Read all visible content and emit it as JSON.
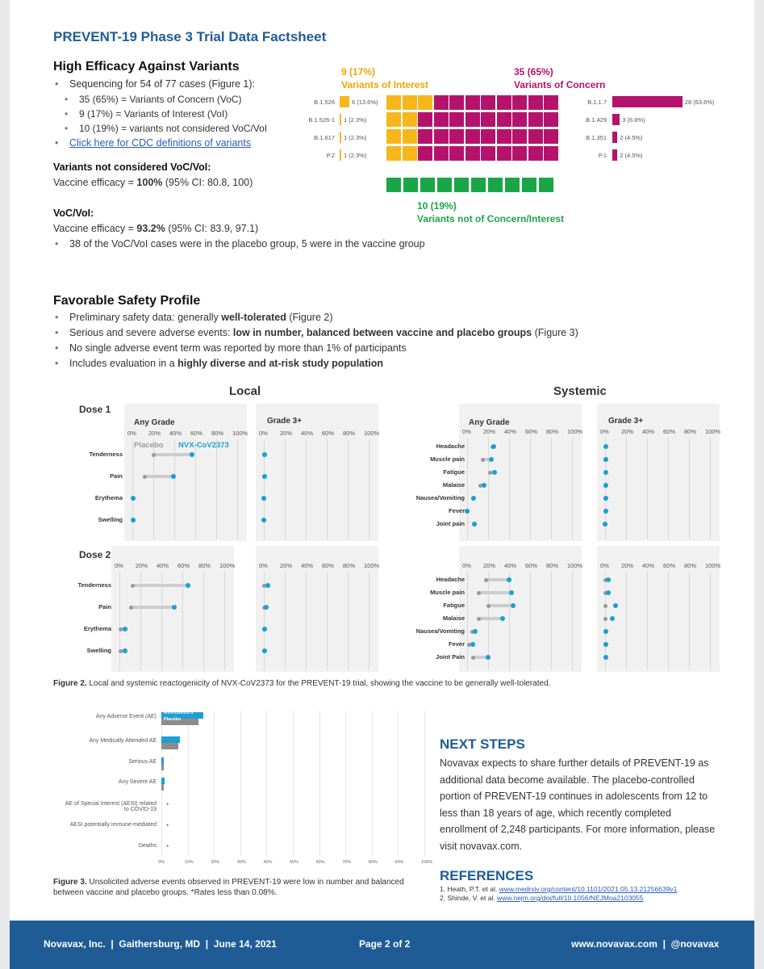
{
  "title": "PREVENT-19 Phase 3 Trial Data Factsheet",
  "efficacy": {
    "heading": "High Efficacy Against Variants",
    "bullets": [
      "Sequencing for 54 of 77 cases (Figure 1):",
      "35 (65%) = Variants of Concern (VoC)",
      "9 (17%) = Variants of Interest (VoI)",
      "10 (19%) = variants not considered VoC/VoI",
      "Click here for CDC definitions of variants"
    ],
    "notvoc_heading": "Variants not considered VoC/VoI:",
    "notvoc_prefix": "Vaccine efficacy = ",
    "notvoc_value": "100%",
    "notvoc_suffix": " (95% CI: 80.8, 100)",
    "voc_heading": "VoC/VoI:",
    "voc_prefix": "Vaccine efficacy = ",
    "voc_value": "93.2%",
    "voc_suffix": " (95% CI: 83.9, 97.1)",
    "voc_bullet": "38 of the VoC/VoI cases were in the placebo group, 5 were in the vaccine group"
  },
  "variants_figure": {
    "voi_count": "9 (17%)",
    "voi_label": "Variants of Interest",
    "voc_count": "35 (65%)",
    "voc_label": "Variants of Concern",
    "other_count": "10 (19%)",
    "other_label": "Variants not of Concern/Interest",
    "voi": [
      {
        "name": "B.1.526",
        "value": 6,
        "label": "6 (13.6%)"
      },
      {
        "name": "B.1.526-1",
        "value": 1,
        "label": "1 (2.3%)"
      },
      {
        "name": "B.1.617",
        "value": 1,
        "label": "1 (2.3%)"
      },
      {
        "name": "P.2",
        "value": 1,
        "label": "1 (2.3%)"
      }
    ],
    "voc": [
      {
        "name": "B.1.1.7",
        "value": 28,
        "label": "28 (63.6%)"
      },
      {
        "name": "B.1.429",
        "value": 3,
        "label": "3 (6.8%)"
      },
      {
        "name": "B.1.351",
        "value": 2,
        "label": "2 (4.5%)"
      },
      {
        "name": "P.1",
        "value": 2,
        "label": "2 (4.5%)"
      }
    ],
    "colors": {
      "voi": "#f6b71b",
      "voc": "#b5136b",
      "other": "#1aa646"
    }
  },
  "safety": {
    "heading": "Favorable Safety Profile",
    "b1_a": "Preliminary safety data: generally ",
    "b1_b": "well-tolerated",
    "b1_c": " (Figure 2)",
    "b2_a": "Serious and severe adverse events: ",
    "b2_b": "low in number, balanced between vaccine and placebo groups",
    "b2_c": " (Figure 3)",
    "b3": "No single adverse event term was reported by more than 1% of participants",
    "b4_a": "Includes evaluation in a ",
    "b4_b": "highly diverse and at-risk study population"
  },
  "reacto": {
    "local_title": "Local",
    "systemic_title": "Systemic",
    "dose1": "Dose 1",
    "dose2": "Dose 2",
    "any_grade": "Any Grade",
    "grade3": "Grade 3+",
    "placebo_label": "Placebo",
    "vaccine_label": "NVX-CoV2373",
    "ticks": [
      "0%",
      "20%",
      "40%",
      "60%",
      "80%",
      "100%"
    ],
    "colors": {
      "placebo": "#999999",
      "vaccine": "#1a9fd6"
    },
    "dose1_local": [
      {
        "name": "Tenderness",
        "placebo": 20,
        "vaccine": 57,
        "p3": 0,
        "v3": 1
      },
      {
        "name": "Pain",
        "placebo": 12,
        "vaccine": 39,
        "p3": 0,
        "v3": 1
      },
      {
        "name": "Erythema",
        "placebo": 1,
        "vaccine": 1,
        "p3": 0,
        "v3": 0
      },
      {
        "name": "Swelling",
        "placebo": 1,
        "vaccine": 1,
        "p3": 0,
        "v3": 0
      }
    ],
    "dose1_systemic": [
      {
        "name": "Headache",
        "placebo": 24,
        "vaccine": 25,
        "p3": 0,
        "v3": 1
      },
      {
        "name": "Muscle pain",
        "placebo": 15,
        "vaccine": 23,
        "p3": 0,
        "v3": 1
      },
      {
        "name": "Fatigue",
        "placebo": 22,
        "vaccine": 26,
        "p3": 0,
        "v3": 1
      },
      {
        "name": "Malaise",
        "placebo": 13,
        "vaccine": 16,
        "p3": 0,
        "v3": 1
      },
      {
        "name": "Nausea/Vomiting",
        "placebo": 6,
        "vaccine": 6,
        "p3": 0,
        "v3": 1
      },
      {
        "name": "Fever",
        "placebo": 0,
        "vaccine": 0,
        "p3": 0,
        "v3": 1
      },
      {
        "name": "Joint pain",
        "placebo": 7,
        "vaccine": 7,
        "p3": 0,
        "v3": 0
      }
    ],
    "dose2_local": [
      {
        "name": "Tenderness",
        "placebo": 13,
        "vaccine": 65,
        "p3": 0,
        "v3": 4
      },
      {
        "name": "Pain",
        "placebo": 11,
        "vaccine": 52,
        "p3": 0,
        "v3": 2
      },
      {
        "name": "Erythema",
        "placebo": 1,
        "vaccine": 5,
        "p3": 0,
        "v3": 1
      },
      {
        "name": "Swelling",
        "placebo": 1,
        "vaccine": 5,
        "p3": 0,
        "v3": 1
      }
    ],
    "dose2_systemic": [
      {
        "name": "Headache",
        "placebo": 18,
        "vaccine": 40,
        "p3": 0,
        "v3": 3
      },
      {
        "name": "Muscle pain",
        "placebo": 11,
        "vaccine": 42,
        "p3": 0,
        "v3": 3
      },
      {
        "name": "Fatigue",
        "placebo": 20,
        "vaccine": 44,
        "p3": 0,
        "v3": 10
      },
      {
        "name": "Malaise",
        "placebo": 11,
        "vaccine": 34,
        "p3": 0,
        "v3": 7
      },
      {
        "name": "Nausea/Vomiting",
        "placebo": 5,
        "vaccine": 8,
        "p3": 0,
        "v3": 1
      },
      {
        "name": "Fever",
        "placebo": 2,
        "vaccine": 5,
        "p3": 0,
        "v3": 1
      },
      {
        "name": "Joint Pain",
        "placebo": 6,
        "vaccine": 20,
        "p3": 0,
        "v3": 1
      }
    ],
    "caption_bold": "Figure 2.",
    "caption": " Local and systemic reactogenicity of NVX-CoV2373 for the PREVENT-19 trial, showing the vaccine to be generally well-tolerated."
  },
  "fig3": {
    "legend_vaccine": "NVX-CoV2373",
    "legend_placebo": "Placebo",
    "ticks": [
      "0%",
      "10%",
      "20%",
      "30%",
      "40%",
      "50%",
      "60%",
      "70%",
      "80%",
      "90%",
      "100%"
    ],
    "rows": [
      {
        "name": "Any Adverse Event (AE)",
        "vaccine": 16,
        "placebo": 14
      },
      {
        "name": "Any Medically Attended AE",
        "vaccine": 7,
        "placebo": 6.5
      },
      {
        "name": "Serious AE",
        "vaccine": 0.9,
        "placebo": 0.9
      },
      {
        "name": "Any Severe AE",
        "vaccine": 1.2,
        "placebo": 1.0
      },
      {
        "name": "AE of Special Interest (AESI) related to COVID-19",
        "vaccine": 0.05,
        "placebo": 0.05,
        "mark": "*"
      },
      {
        "name": "AESI potentially immune-mediated",
        "vaccine": 0.05,
        "placebo": 0.05,
        "mark": "*"
      },
      {
        "name": "Deaths",
        "vaccine": 0.05,
        "placebo": 0.05,
        "mark": "*"
      }
    ],
    "caption_bold": "Figure 3.",
    "caption": " Unsolicited adverse events observed in PREVENT-19 were low in number and balanced between vaccine and placebo groups. *Rates less than 0.08%."
  },
  "next_steps": {
    "heading": "NEXT STEPS",
    "body": "Novavax expects to share further details of PREVENT-19 as additional data become available. The placebo-controlled portion of PREVENT-19 continues in adolescents from 12 to less than 18 years of age, which recently completed enrollment of 2,248 participants. For more information, please visit novavax.com."
  },
  "references": {
    "heading": "REFERENCES",
    "r1_a": "1. Heath, P.T. et al. ",
    "r1_link": "www.medrxiv.org/content/10.1101/2021.05.13.21256639v1",
    "r2_a": "2. Shinde, V. et al. ",
    "r2_link": "www.nejm.org/doi/full/10.1056/NEJMoa2103055"
  },
  "footer": {
    "left": "Novavax, Inc.  |  Gaithersburg, MD  |  June 14, 2021",
    "center": "Page 2 of 2",
    "right": "www.novavax.com  |  @novavax"
  }
}
